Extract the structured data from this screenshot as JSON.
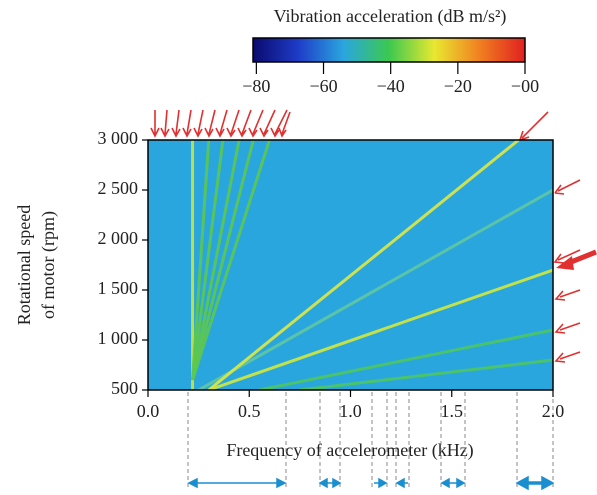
{
  "chart_data": {
    "type": "heatmap",
    "title": "Vibration acceleration (dB m/s²)",
    "x_label": "Frequency of accelerometer (kHz)",
    "y_label": [
      "Rotational speed",
      "of motor (rpm)"
    ],
    "xlim": [
      0,
      2
    ],
    "ylim": [
      500,
      3000
    ],
    "xticks": [
      {
        "value": 0,
        "label": "0.0"
      },
      {
        "value": 0.5,
        "label": "0.5"
      },
      {
        "value": 1,
        "label": "1.0"
      },
      {
        "value": 1.5,
        "label": "1.5"
      },
      {
        "value": 2,
        "label": "2.0"
      }
    ],
    "yticks": [
      {
        "value": 500,
        "label": "500"
      },
      {
        "value": 1000,
        "label": "1 000"
      },
      {
        "value": 1500,
        "label": "1 500"
      },
      {
        "value": 2000,
        "label": "2 000"
      },
      {
        "value": 2500,
        "label": "2 500"
      },
      {
        "value": 3000,
        "label": "3 000"
      }
    ],
    "background_color": "#2aa6df",
    "colormap": [
      "#0a0a6e",
      "#1e3cc8",
      "#2aa6df",
      "#3cc850",
      "#e8e830",
      "#f08020",
      "#e02020"
    ],
    "clim": [
      -81,
      0
    ],
    "cticks": [
      {
        "value": -80,
        "label": "−80"
      },
      {
        "value": -60,
        "label": "−60"
      },
      {
        "value": -40,
        "label": "−40"
      },
      {
        "value": -20,
        "label": "−20"
      },
      {
        "value": 0,
        "label": "−00"
      }
    ],
    "series": [
      {
        "x": [
          0.22,
          0.22
        ],
        "y": [
          500,
          3000
        ],
        "color": "#c8e640"
      },
      {
        "x": [
          0.22,
          0.3
        ],
        "y": [
          600,
          3000
        ],
        "color": "#5cc850"
      },
      {
        "x": [
          0.22,
          0.37
        ],
        "y": [
          600,
          3000
        ],
        "color": "#5cc850"
      },
      {
        "x": [
          0.22,
          0.45
        ],
        "y": [
          600,
          3000
        ],
        "color": "#5cc850"
      },
      {
        "x": [
          0.22,
          0.52
        ],
        "y": [
          600,
          3000
        ],
        "color": "#5cc850"
      },
      {
        "x": [
          0.22,
          0.6
        ],
        "y": [
          600,
          3000
        ],
        "color": "#5cc850"
      },
      {
        "x": [
          0.25,
          2.0
        ],
        "y": [
          500,
          2500
        ],
        "color": "#60c8a0"
      },
      {
        "x": [
          0.3,
          1.83
        ],
        "y": [
          500,
          3000
        ],
        "color": "#e0e840"
      },
      {
        "x": [
          0.3,
          2.0
        ],
        "y": [
          500,
          1700
        ],
        "color": "#d4e838"
      },
      {
        "x": [
          0.55,
          2.0
        ],
        "y": [
          500,
          1100
        ],
        "color": "#4cc860"
      },
      {
        "x": [
          0.75,
          2.0
        ],
        "y": [
          500,
          800
        ],
        "color": "#4cc860"
      }
    ]
  }
}
